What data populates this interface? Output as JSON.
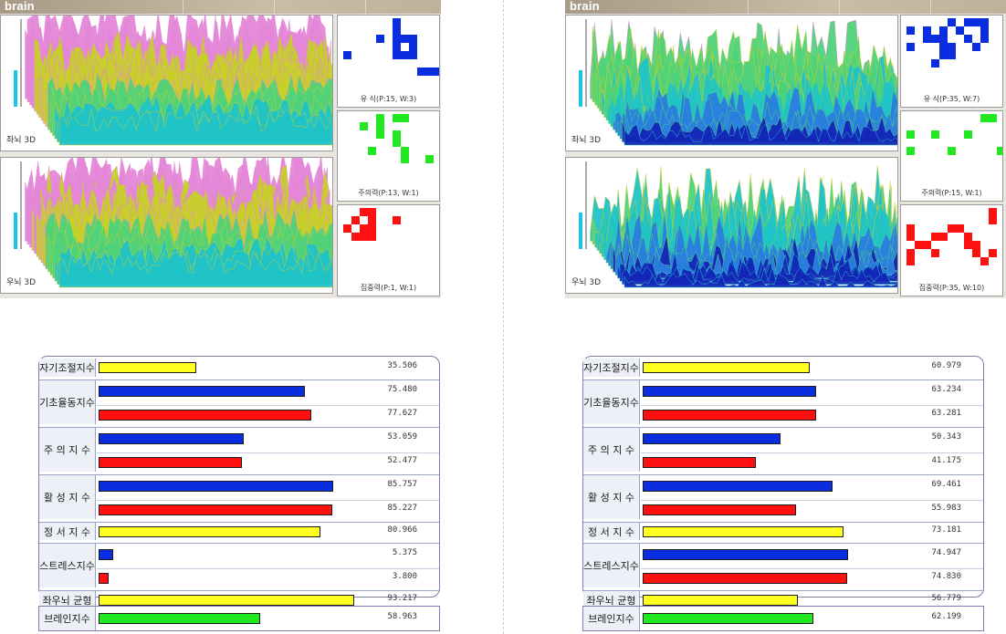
{
  "colors": {
    "blue": "#0b2de0",
    "red": "#ff1010",
    "yellow": "#ffff20",
    "green": "#22e822"
  },
  "left": {
    "header": "brain",
    "plot_top_label": "좌뇌 3D",
    "plot_bottom_label": "우뇌 3D",
    "grids": [
      {
        "caption": "유  식(P:15, W:3)",
        "color": "blue",
        "cells": [
          [
            6,
            0
          ],
          [
            6,
            1
          ],
          [
            4,
            2
          ],
          [
            6,
            2
          ],
          [
            7,
            2
          ],
          [
            8,
            2
          ],
          [
            6,
            3
          ],
          [
            8,
            3
          ],
          [
            0,
            4
          ],
          [
            6,
            4
          ],
          [
            7,
            4
          ],
          [
            8,
            4
          ],
          [
            9,
            6
          ],
          [
            10,
            6
          ],
          [
            11,
            6
          ]
        ]
      },
      {
        "caption": "주의력(P:13, W:1)",
        "color": "green",
        "cells": [
          [
            4,
            0
          ],
          [
            6,
            0
          ],
          [
            7,
            0
          ],
          [
            2,
            1
          ],
          [
            4,
            1
          ],
          [
            4,
            2
          ],
          [
            6,
            2
          ],
          [
            6,
            3
          ],
          [
            3,
            4
          ],
          [
            7,
            4
          ],
          [
            7,
            5
          ],
          [
            10,
            5
          ]
        ]
      },
      {
        "caption": "집중력(P:1, W:1)",
        "color": "red",
        "cells": [
          [
            2,
            0
          ],
          [
            3,
            0
          ],
          [
            1,
            1
          ],
          [
            3,
            1
          ],
          [
            6,
            1
          ],
          [
            0,
            2
          ],
          [
            2,
            2
          ],
          [
            3,
            2
          ],
          [
            1,
            3
          ],
          [
            2,
            3
          ],
          [
            3,
            3
          ]
        ]
      }
    ],
    "indices": [
      {
        "label": "자기조절지수",
        "bars": [
          {
            "color": "yellow",
            "value": 35.506,
            "text": "35.506"
          }
        ]
      },
      {
        "label": "기초율동지수",
        "bars": [
          {
            "color": "blue",
            "value": 75.48,
            "text": "75.480"
          },
          {
            "color": "red",
            "value": 77.627,
            "text": "77.627"
          }
        ]
      },
      {
        "label": "주 의  지 수",
        "bars": [
          {
            "color": "blue",
            "value": 53.059,
            "text": "53.059"
          },
          {
            "color": "red",
            "value": 52.477,
            "text": "52.477"
          }
        ]
      },
      {
        "label": "활 성  지 수",
        "bars": [
          {
            "color": "blue",
            "value": 85.757,
            "text": "85.757"
          },
          {
            "color": "red",
            "value": 85.227,
            "text": "85.227"
          }
        ]
      },
      {
        "label": "정 서  지 수",
        "bars": [
          {
            "color": "yellow",
            "value": 80.966,
            "text": "80.966"
          }
        ]
      },
      {
        "label": "스트레스지수",
        "bars": [
          {
            "color": "blue",
            "value": 5.375,
            "text": "5.375"
          },
          {
            "color": "red",
            "value": 3.8,
            "text": "3.800"
          }
        ]
      },
      {
        "label": "좌우뇌  균형",
        "bars": [
          {
            "color": "yellow",
            "value": 93.217,
            "text": "93.217"
          }
        ]
      }
    ],
    "brain_index": {
      "label": "브레인지수",
      "color": "green",
      "value": 58.963,
      "text": "58.963"
    }
  },
  "right": {
    "header": "brain",
    "plot_top_label": "좌뇌 3D",
    "plot_bottom_label": "우뇌 3D",
    "grids": [
      {
        "caption": "유  식(P:35, W:7)",
        "color": "blue",
        "cells": [
          [
            5,
            0
          ],
          [
            7,
            0
          ],
          [
            8,
            0
          ],
          [
            9,
            0
          ],
          [
            0,
            1
          ],
          [
            2,
            1
          ],
          [
            4,
            1
          ],
          [
            6,
            1
          ],
          [
            9,
            1
          ],
          [
            2,
            2
          ],
          [
            3,
            2
          ],
          [
            4,
            2
          ],
          [
            7,
            2
          ],
          [
            9,
            2
          ],
          [
            0,
            3
          ],
          [
            4,
            3
          ],
          [
            5,
            3
          ],
          [
            8,
            3
          ],
          [
            4,
            4
          ],
          [
            5,
            4
          ],
          [
            3,
            5
          ]
        ]
      },
      {
        "caption": "주의력(P:15, W:1)",
        "color": "green",
        "cells": [
          [
            9,
            0
          ],
          [
            10,
            0
          ],
          [
            0,
            2
          ],
          [
            3,
            2
          ],
          [
            7,
            2
          ],
          [
            0,
            4
          ],
          [
            5,
            4
          ],
          [
            11,
            4
          ]
        ]
      },
      {
        "caption": "집중력(P:35, W:10)",
        "color": "red",
        "cells": [
          [
            10,
            0
          ],
          [
            10,
            1
          ],
          [
            0,
            2
          ],
          [
            5,
            2
          ],
          [
            6,
            2
          ],
          [
            0,
            3
          ],
          [
            3,
            3
          ],
          [
            4,
            3
          ],
          [
            7,
            3
          ],
          [
            1,
            4
          ],
          [
            2,
            4
          ],
          [
            7,
            4
          ],
          [
            8,
            4
          ],
          [
            0,
            5
          ],
          [
            3,
            5
          ],
          [
            8,
            5
          ],
          [
            10,
            5
          ],
          [
            0,
            6
          ],
          [
            9,
            6
          ]
        ]
      }
    ],
    "indices": [
      {
        "label": "자기조절지수",
        "bars": [
          {
            "color": "yellow",
            "value": 60.979,
            "text": "60.979"
          }
        ]
      },
      {
        "label": "기초율동지수",
        "bars": [
          {
            "color": "blue",
            "value": 63.234,
            "text": "63.234"
          },
          {
            "color": "red",
            "value": 63.281,
            "text": "63.281"
          }
        ]
      },
      {
        "label": "주 의  지 수",
        "bars": [
          {
            "color": "blue",
            "value": 50.343,
            "text": "50.343"
          },
          {
            "color": "red",
            "value": 41.175,
            "text": "41.175"
          }
        ]
      },
      {
        "label": "활 성  지 수",
        "bars": [
          {
            "color": "blue",
            "value": 69.461,
            "text": "69.461"
          },
          {
            "color": "red",
            "value": 55.983,
            "text": "55.983"
          }
        ]
      },
      {
        "label": "정 서  지 수",
        "bars": [
          {
            "color": "yellow",
            "value": 73.181,
            "text": "73.181"
          }
        ]
      },
      {
        "label": "스트레스지수",
        "bars": [
          {
            "color": "blue",
            "value": 74.947,
            "text": "74.947"
          },
          {
            "color": "red",
            "value": 74.83,
            "text": "74.830"
          }
        ]
      },
      {
        "label": "좌우뇌  균형",
        "bars": [
          {
            "color": "yellow",
            "value": 56.779,
            "text": "56.779"
          }
        ]
      }
    ],
    "brain_index": {
      "label": "브레인지수",
      "color": "green",
      "value": 62.199,
      "text": "62.199"
    }
  }
}
